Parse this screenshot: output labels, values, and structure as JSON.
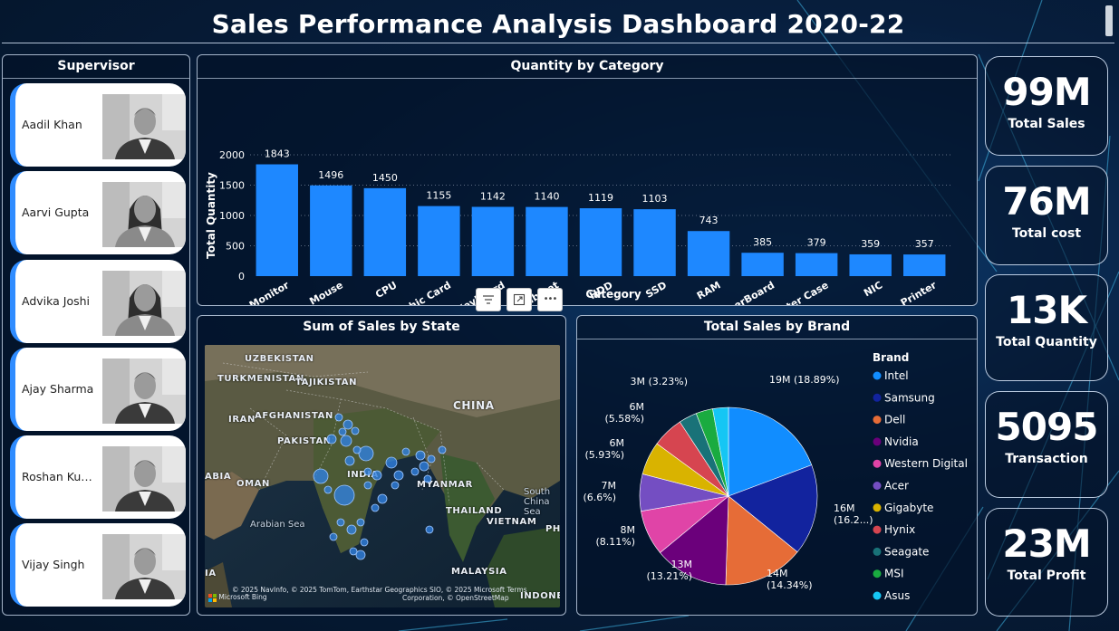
{
  "header": {
    "title": "Sales Performance Analysis Dashboard 2020-22"
  },
  "supervisor_panel": {
    "title": "Supervisor",
    "items": [
      {
        "name": "Aadil Khan",
        "photo": "male-person-photo"
      },
      {
        "name": "Aarvi Gupta",
        "photo": "female-person-photo"
      },
      {
        "name": "Advika Joshi",
        "photo": "female-person-photo"
      },
      {
        "name": "Ajay Sharma",
        "photo": "male-person-photo"
      },
      {
        "name": "Roshan Ku…",
        "photo": "male-person-photo"
      },
      {
        "name": "Vijay Singh",
        "photo": "male-person-photo"
      }
    ]
  },
  "bar_chart": {
    "title": "Quantity by Category",
    "chart_data": {
      "type": "bar",
      "title": "Quantity by Category",
      "xlabel": "Category",
      "ylabel": "Total Quantity",
      "categories": [
        "Monitor",
        "Mouse",
        "CPU",
        "Graphic Card",
        "Keyboard",
        "Cabinet",
        "HDD",
        "SSD",
        "RAM",
        "MotherBoard",
        "Computer Case",
        "NIC",
        "Printer"
      ],
      "values": [
        1843,
        1496,
        1450,
        1155,
        1142,
        1140,
        1119,
        1103,
        743,
        385,
        379,
        359,
        357
      ],
      "ylim": [
        0,
        2000
      ],
      "yticks": [
        "0",
        "500",
        "1000",
        "1500",
        "2000"
      ],
      "bar_color": "#1e88ff",
      "grid": true
    }
  },
  "visual_toolbar": {
    "filter_icon": "filter-icon",
    "focus_icon": "focus-mode-icon",
    "more_label": "•••"
  },
  "map": {
    "title": "Sum of Sales by State",
    "country_labels": [
      "UZBEKISTAN",
      "TURKMENISTAN",
      "TAJIKISTAN",
      "AFGHANISTAN",
      "IRAN",
      "PAKISTAN",
      "CHINA",
      "INDIA",
      "OMAN",
      "MYANMAR",
      "THAILAND",
      "VIETNAM",
      "MALAYSIA",
      "ABIA",
      "PHI",
      "INDONES",
      "IA"
    ],
    "sea_labels": [
      "Arabian Sea",
      "South China Sea"
    ],
    "credit": "© 2025 NavInfo, © 2025 TomTom, Earthstar Geographics SIO, © 2025 Microsoft  Terms",
    "credit2": "Corporation, © OpenStreetMap",
    "bing_label": "Microsoft Bing",
    "bubble_color": "#2f7fe0"
  },
  "pie_chart": {
    "title": "Total Sales by Brand",
    "legend_title": "Brand",
    "chart_data": {
      "type": "pie",
      "title": "Total Sales by Brand",
      "slices": [
        {
          "label": "Intel",
          "value": 18.89,
          "color": "#118dff",
          "data_label": "19M (18.89%)"
        },
        {
          "label": "Samsung",
          "value": 16.2,
          "color": "#12239e",
          "data_label": "16M (16.2...)"
        },
        {
          "label": "Dell",
          "value": 14.34,
          "color": "#e66c37",
          "data_label": "14M (14.34%)"
        },
        {
          "label": "Nvidia",
          "value": 13.21,
          "color": "#6b007b",
          "data_label": "13M (13.21%)"
        },
        {
          "label": "Western Digital",
          "value": 8.11,
          "color": "#e044a7",
          "data_label": "8M (8.11%)"
        },
        {
          "label": "Acer",
          "value": 6.6,
          "color": "#744ec2",
          "data_label": "7M (6.6%)"
        },
        {
          "label": "Gigabyte",
          "value": 5.93,
          "color": "#d9b300",
          "data_label": "6M (5.93%)"
        },
        {
          "label": "Hynix",
          "value": 5.58,
          "color": "#d64550",
          "data_label": "6M (5.58%)"
        },
        {
          "label": "Seagate",
          "value": 3.23,
          "color": "#197278",
          "data_label": "3M (3.23%)"
        },
        {
          "label": "MSI",
          "value": 3.0,
          "color": "#1aab40",
          "data_label": ""
        },
        {
          "label": "Asus",
          "value": 2.8,
          "color": "#15c6f4",
          "data_label": ""
        }
      ]
    }
  },
  "kpis": [
    {
      "value": "99M",
      "label": "Total Sales"
    },
    {
      "value": "76M",
      "label": "Total cost"
    },
    {
      "value": "13K",
      "label": "Total Quantity"
    },
    {
      "value": "5095",
      "label": "Transaction"
    },
    {
      "value": "23M",
      "label": "Total Profit"
    }
  ]
}
